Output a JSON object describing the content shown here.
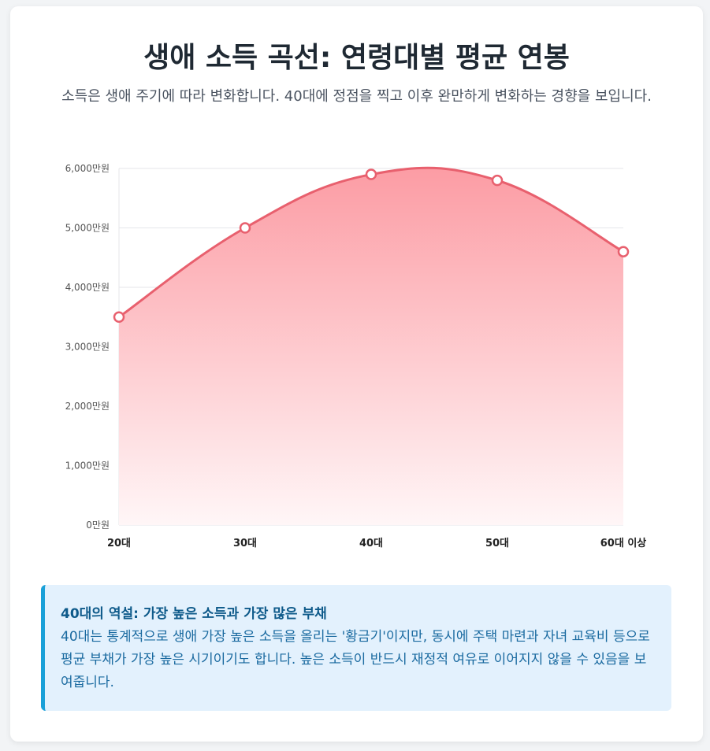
{
  "header": {
    "title": "생애 소득 곡선: 연령대별 평균 연봉",
    "subtitle": "소득은 생애 주기에 따라 변화합니다. 40대에 정점을 찍고 이후 완만하게 변화하는 경향을 보입니다."
  },
  "chart_data": {
    "type": "area",
    "categories": [
      "20대",
      "30대",
      "40대",
      "50대",
      "60대 이상"
    ],
    "values": [
      3500,
      5000,
      5900,
      5800,
      4600
    ],
    "ylim": [
      0,
      6000
    ],
    "y_ticks": [
      "0만원",
      "1,000만원",
      "2,000만원",
      "3,000만원",
      "4,000만원",
      "5,000만원",
      "6,000만원"
    ],
    "grid": true,
    "legend": "none",
    "line_color": "#e8606e",
    "fill_color_top": "#fc9ca4",
    "fill_color_bottom": "#fff6f7"
  },
  "callout": {
    "title": "40대의 역설: 가장 높은 소득과 가장 많은 부채",
    "body": "40대는 통계적으로 생애 가장 높은 소득을 올리는 '황금기'이지만, 동시에 주택 마련과 자녀 교육비 등으로 평균 부채가 가장 높은 시기이기도 합니다. 높은 소득이 반드시 재정적 여유로 이어지지 않을 수 있음을 보여줍니다."
  }
}
